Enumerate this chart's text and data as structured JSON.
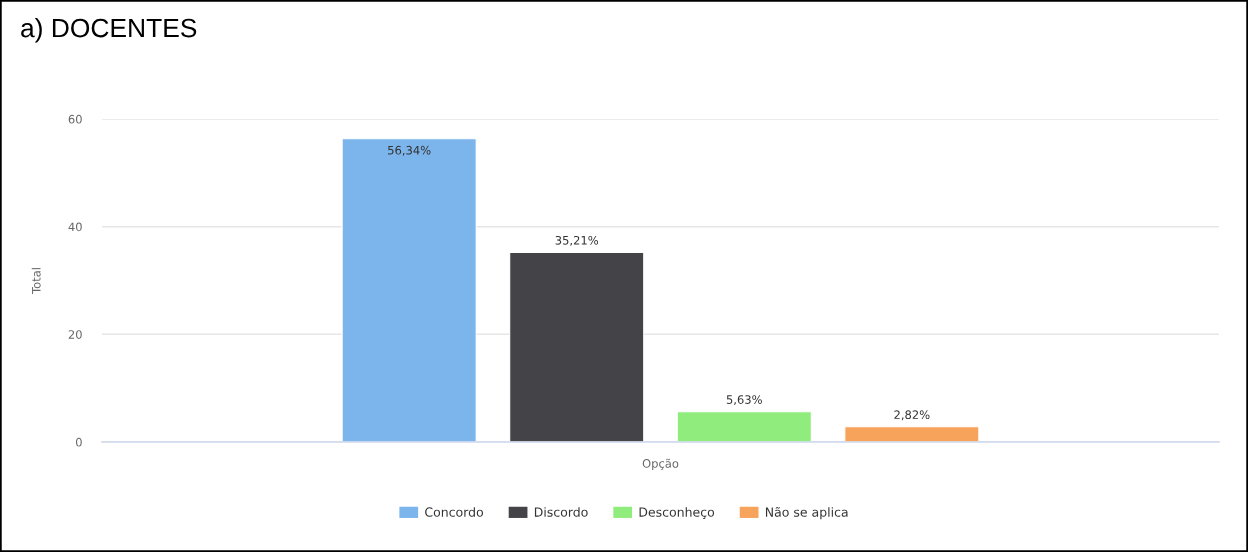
{
  "chart_data": {
    "type": "bar",
    "title": "a) DOCENTES",
    "ylabel": "Total",
    "categories": [
      "Opção"
    ],
    "series": [
      {
        "name": "Concordo",
        "color": "#7cb5ec",
        "values": [
          56.34
        ],
        "value_labels": [
          "56,34%"
        ]
      },
      {
        "name": "Discordo",
        "color": "#434348",
        "values": [
          35.21
        ],
        "value_labels": [
          "35,21%"
        ]
      },
      {
        "name": "Desconheço",
        "color": "#90ed7d",
        "values": [
          5.63
        ],
        "value_labels": [
          "5,63%"
        ]
      },
      {
        "name": "Não se aplica",
        "color": "#f7a35c",
        "values": [
          2.82
        ],
        "value_labels": [
          "2,82%"
        ]
      }
    ],
    "ylim": [
      0,
      60
    ],
    "yticks": [
      0,
      20,
      40,
      60
    ],
    "grid": "y",
    "legend": "bottom"
  }
}
